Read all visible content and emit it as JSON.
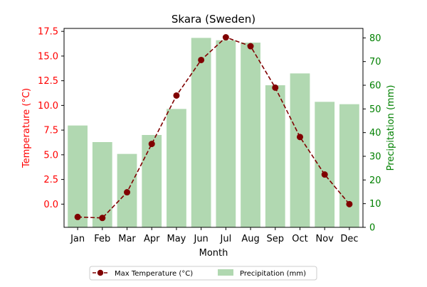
{
  "chart_data": {
    "type": "bar+line",
    "title": "Skara (Sweden)",
    "xlabel": "Month",
    "categories": [
      "Jan",
      "Feb",
      "Mar",
      "Apr",
      "May",
      "Jun",
      "Jul",
      "Aug",
      "Sep",
      "Oct",
      "Nov",
      "Dec"
    ],
    "series": [
      {
        "name": "Max Temperature (°C)",
        "type": "line",
        "axis": "left",
        "color": "#800000",
        "linestyle": "dashed",
        "marker": "circle",
        "values": [
          -1.3,
          -1.4,
          1.2,
          6.1,
          11.0,
          14.6,
          16.9,
          16.0,
          11.8,
          6.8,
          3.0,
          0.0
        ]
      },
      {
        "name": "Precipitation (mm)",
        "type": "bar",
        "axis": "right",
        "color": "#b1d8b1",
        "values": [
          43,
          36,
          31,
          39,
          50,
          80,
          79,
          78,
          60,
          65,
          53,
          52
        ]
      }
    ],
    "y_left": {
      "label": "Temperature (°C)",
      "color": "#ff0000",
      "ylim": [
        -2.35,
        17.8
      ],
      "ticks": [
        "0.0",
        "2.5",
        "5.0",
        "7.5",
        "10.0",
        "12.5",
        "15.0",
        "17.5"
      ]
    },
    "y_right": {
      "label": "Precipitation (mm)",
      "color": "#008000",
      "ylim": [
        0,
        84
      ],
      "ticks": [
        "0",
        "10",
        "20",
        "30",
        "40",
        "50",
        "60",
        "70",
        "80"
      ]
    },
    "grid": false,
    "legend": "bottom-center"
  }
}
